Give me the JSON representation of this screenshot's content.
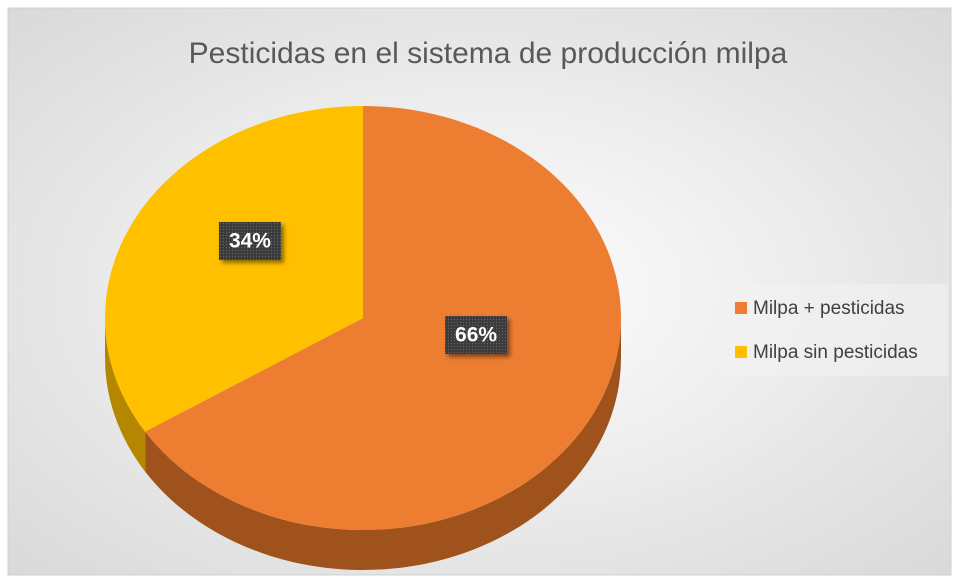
{
  "chart_data": {
    "type": "pie",
    "title": "Pesticidas en el sistema de producción milpa",
    "categories": [
      "Milpa + pesticidas",
      "Milpa sin pesticidas"
    ],
    "values": [
      66,
      34
    ],
    "value_labels": [
      "66%",
      "34%"
    ],
    "colors": [
      "#ED7D31",
      "#FFC000"
    ],
    "side_colors": [
      "#A0521C",
      "#B58700"
    ],
    "legend": "right"
  }
}
